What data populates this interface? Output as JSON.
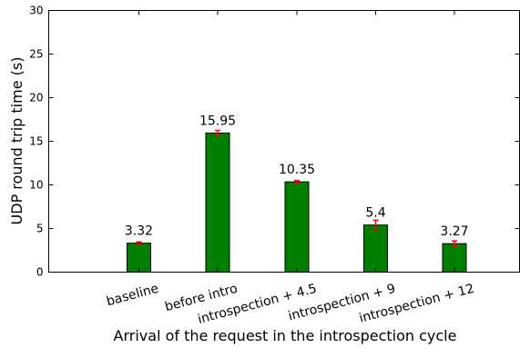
{
  "chart_data": {
    "type": "bar",
    "categories": [
      "baseline",
      "before intro",
      "introspection + 4.5",
      "introspection + 9",
      "introspection + 12"
    ],
    "values": [
      3.32,
      15.95,
      10.35,
      5.4,
      3.27
    ],
    "errors": [
      0.15,
      0.3,
      0.15,
      0.55,
      0.3
    ],
    "data_labels": [
      "3.32",
      "15.95",
      "10.35",
      "5.4",
      "3.27"
    ],
    "xlabel": "Arrival of the request in the introspection cycle",
    "ylabel": "UDP round trip time (s)",
    "ylim": [
      0,
      30
    ],
    "yticks": [
      0,
      5,
      10,
      15,
      20,
      25,
      30
    ],
    "bar_color": "#008000",
    "error_color": "#ff0000",
    "grid": false,
    "legend": "none"
  }
}
